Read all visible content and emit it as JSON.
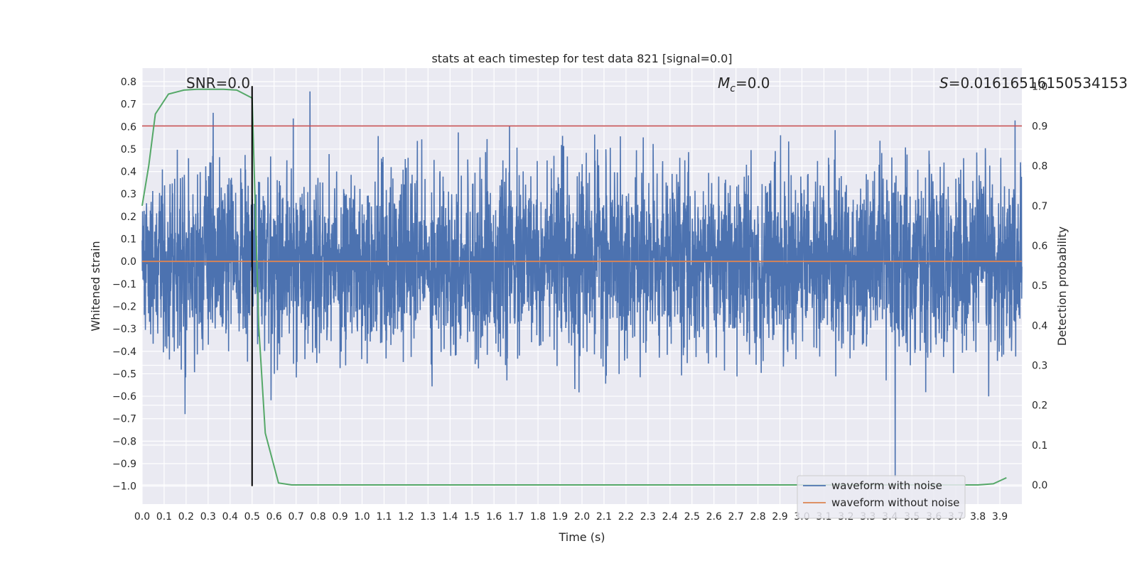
{
  "chart_data": {
    "type": "line",
    "title": "stats at each timestep for test data 821 [signal=0.0]",
    "xlabel": "Time (s)",
    "ylabel": "Whitened strain",
    "y2label": "Detection probability",
    "xlim": [
      0.0,
      4.0
    ],
    "ylim": [
      -1.08,
      0.86
    ],
    "y2lim": [
      -0.048,
      1.045
    ],
    "x_ticks": [
      "0.0",
      "0.1",
      "0.2",
      "0.3",
      "0.4",
      "0.5",
      "0.6",
      "0.7",
      "0.8",
      "0.9",
      "1.0",
      "1.1",
      "1.2",
      "1.3",
      "1.4",
      "1.5",
      "1.6",
      "1.7",
      "1.8",
      "1.9",
      "2.0",
      "2.1",
      "2.2",
      "2.3",
      "2.4",
      "2.5",
      "2.6",
      "2.7",
      "2.8",
      "2.9",
      "3.0",
      "3.1",
      "3.2",
      "3.3",
      "3.4",
      "3.5",
      "3.6",
      "3.7",
      "3.8",
      "3.9"
    ],
    "y_ticks": [
      "0.8",
      "0.7",
      "0.6",
      "0.5",
      "0.4",
      "0.3",
      "0.2",
      "0.1",
      "0.0",
      "−0.1",
      "−0.2",
      "−0.3",
      "−0.4",
      "−0.5",
      "−0.6",
      "−0.7",
      "−0.8",
      "−0.9",
      "−1.0"
    ],
    "y2_ticks": [
      "1.0",
      "0.9",
      "0.8",
      "0.7",
      "0.6",
      "0.5",
      "0.4",
      "0.3",
      "0.2",
      "0.1",
      "0.0"
    ],
    "grid": true,
    "legend_placement": "lower-right",
    "annotations": {
      "snr": "SNR=0.0",
      "mc_symbol": "M",
      "mc_sub": "c",
      "mc_value": "=0.0",
      "s_symbol": "S",
      "s_value": "=0.01616516150534153"
    },
    "series": [
      {
        "name": "waveform with noise",
        "color": "#4c72b0",
        "description_sample_count": 4000,
        "amplitude_sigma": 0.2,
        "min": -1.0,
        "max": 0.76
      },
      {
        "name": "waveform without noise",
        "color": "#dd8452",
        "value": 0.0
      }
    ],
    "detection_probability": {
      "color": "#55a868",
      "x": [
        0.0,
        0.03,
        0.06,
        0.12,
        0.19,
        0.25,
        0.31,
        0.37,
        0.43,
        0.5,
        0.53,
        0.56,
        0.62,
        0.68,
        0.75,
        1.0,
        2.0,
        3.0,
        3.6,
        3.8,
        3.87,
        3.93
      ],
      "y": [
        0.7,
        0.8,
        0.93,
        0.98,
        0.99,
        0.992,
        0.992,
        0.992,
        0.99,
        0.97,
        0.4,
        0.13,
        0.005,
        0.0,
        0.0,
        0.0,
        0.0,
        0.0,
        0.0,
        0.0,
        0.003,
        0.018
      ]
    },
    "threshold": {
      "color": "#c44e52",
      "value": 0.9
    },
    "vertical_marker": {
      "color": "#000000",
      "x": 0.5
    }
  }
}
